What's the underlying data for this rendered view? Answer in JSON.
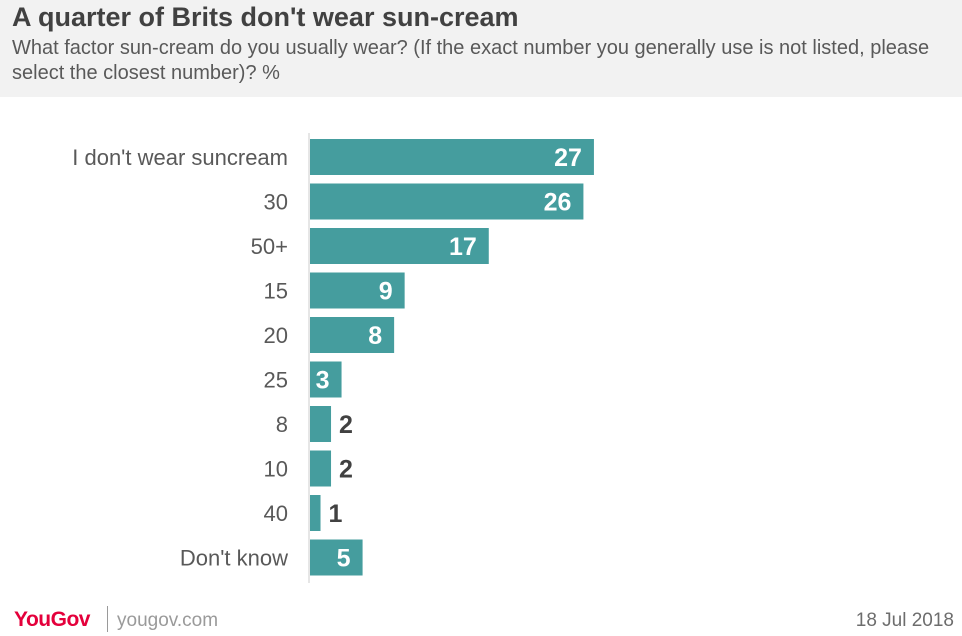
{
  "header": {
    "title": "A quarter of Brits don't wear sun-cream",
    "subtitle": "What factor sun-cream do you usually wear? (If the exact number you generally use is not listed, please select the closest number)? %"
  },
  "chart_data": {
    "type": "bar",
    "orientation": "horizontal",
    "categories": [
      "I don't wear suncream",
      "30",
      "50+",
      "15",
      "20",
      "25",
      "8",
      "10",
      "40",
      "Don't know"
    ],
    "values": [
      27,
      26,
      17,
      9,
      8,
      3,
      2,
      2,
      1,
      5
    ],
    "title": "A quarter of Brits don't wear sun-cream",
    "xlim": [
      0,
      62
    ],
    "grid": false,
    "legend": "none",
    "colors": {
      "bar": "#459d9e",
      "label_inside": "#ffffff",
      "label_outside": "#414141",
      "category": "#595959",
      "axis": "#cccccc"
    }
  },
  "footer": {
    "brand": "YouGov",
    "site": "yougov.com",
    "date": "18 Jul 2018"
  }
}
